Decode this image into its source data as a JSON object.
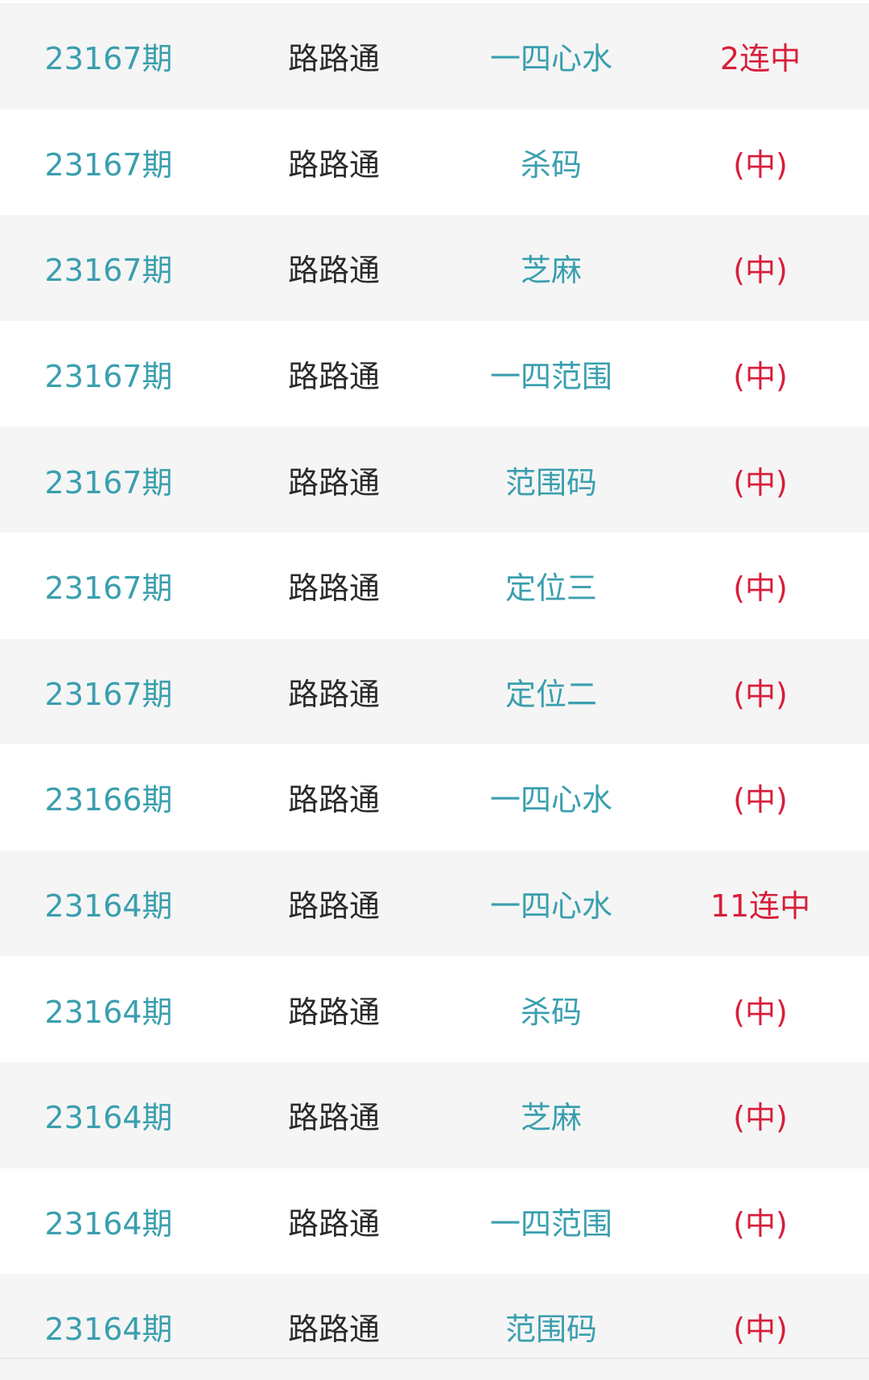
{
  "colors": {
    "period": "#3a9fae",
    "source": "#2a2a2a",
    "type": "#3a9fae",
    "result": "#d81e3a"
  },
  "rows": [
    {
      "period": "23167期",
      "source": "路路通",
      "type": "一四心水",
      "result": "2连中"
    },
    {
      "period": "23167期",
      "source": "路路通",
      "type": "杀码",
      "result": "(中)"
    },
    {
      "period": "23167期",
      "source": "路路通",
      "type": "芝麻",
      "result": "(中)"
    },
    {
      "period": "23167期",
      "source": "路路通",
      "type": "一四范围",
      "result": "(中)"
    },
    {
      "period": "23167期",
      "source": "路路通",
      "type": "范围码",
      "result": "(中)"
    },
    {
      "period": "23167期",
      "source": "路路通",
      "type": "定位三",
      "result": "(中)"
    },
    {
      "period": "23167期",
      "source": "路路通",
      "type": "定位二",
      "result": "(中)"
    },
    {
      "period": "23166期",
      "source": "路路通",
      "type": "一四心水",
      "result": "(中)"
    },
    {
      "period": "23164期",
      "source": "路路通",
      "type": "一四心水",
      "result": "11连中"
    },
    {
      "period": "23164期",
      "source": "路路通",
      "type": "杀码",
      "result": "(中)"
    },
    {
      "period": "23164期",
      "source": "路路通",
      "type": "芝麻",
      "result": "(中)"
    },
    {
      "period": "23164期",
      "source": "路路通",
      "type": "一四范围",
      "result": "(中)"
    },
    {
      "period": "23164期",
      "source": "路路通",
      "type": "范围码",
      "result": "(中)"
    }
  ]
}
